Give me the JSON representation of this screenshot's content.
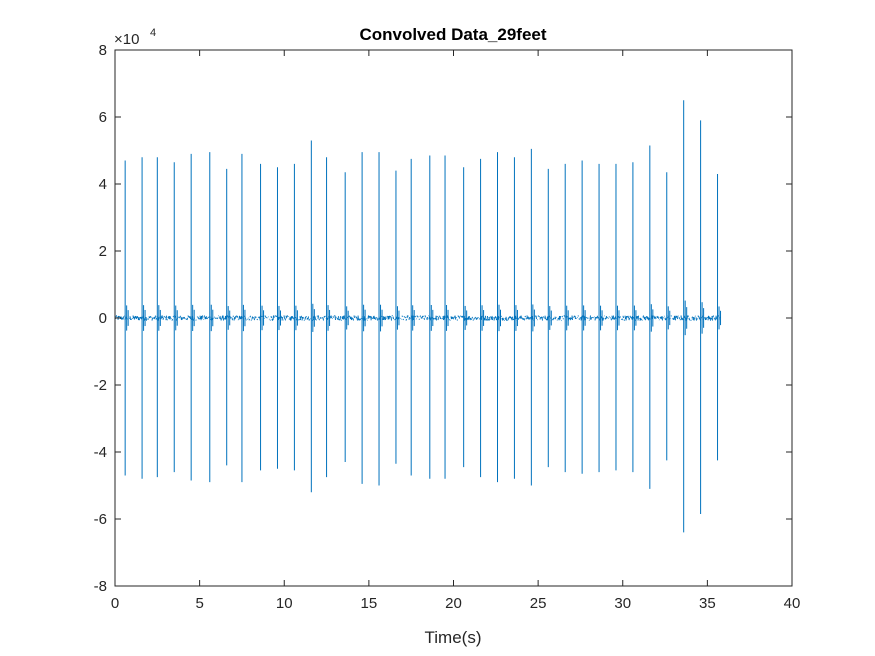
{
  "chart_data": {
    "type": "line",
    "title": "Convolved Data_29feet",
    "xlabel": "Time(s)",
    "ylabel": "",
    "xlim": [
      0,
      40
    ],
    "ylim": [
      -8,
      8
    ],
    "y_exponent_label": "×10",
    "y_exponent_power": "4",
    "x_ticks": [
      0,
      5,
      10,
      15,
      20,
      25,
      30,
      35,
      40
    ],
    "y_ticks": [
      -8,
      -6,
      -4,
      -2,
      0,
      2,
      4,
      6,
      8
    ],
    "x_tick_labels": [
      "0",
      "5",
      "10",
      "15",
      "20",
      "25",
      "30",
      "35",
      "40"
    ],
    "y_tick_labels": [
      "-8",
      "-6",
      "-4",
      "-2",
      "0",
      "2",
      "4",
      "6",
      "8"
    ],
    "grid": false,
    "line_color": "#0072BD",
    "signal_start": 0,
    "signal_end": 35.8,
    "baseline_noise": 0.08,
    "pulses": [
      {
        "t": 0.6,
        "max": 4.7,
        "min": -4.7
      },
      {
        "t": 1.6,
        "max": 4.8,
        "min": -4.8
      },
      {
        "t": 2.5,
        "max": 4.8,
        "min": -4.75
      },
      {
        "t": 3.5,
        "max": 4.65,
        "min": -4.6
      },
      {
        "t": 4.5,
        "max": 4.9,
        "min": -4.85
      },
      {
        "t": 5.6,
        "max": 4.95,
        "min": -4.9
      },
      {
        "t": 6.6,
        "max": 4.45,
        "min": -4.4
      },
      {
        "t": 7.5,
        "max": 4.9,
        "min": -4.9
      },
      {
        "t": 8.6,
        "max": 4.6,
        "min": -4.55
      },
      {
        "t": 9.6,
        "max": 4.5,
        "min": -4.5
      },
      {
        "t": 10.6,
        "max": 4.6,
        "min": -4.55
      },
      {
        "t": 11.6,
        "max": 5.3,
        "min": -5.2
      },
      {
        "t": 12.5,
        "max": 4.8,
        "min": -4.75
      },
      {
        "t": 13.6,
        "max": 4.35,
        "min": -4.3
      },
      {
        "t": 14.6,
        "max": 4.95,
        "min": -4.95
      },
      {
        "t": 15.6,
        "max": 4.95,
        "min": -5.0
      },
      {
        "t": 16.6,
        "max": 4.4,
        "min": -4.35
      },
      {
        "t": 17.5,
        "max": 4.75,
        "min": -4.7
      },
      {
        "t": 18.6,
        "max": 4.85,
        "min": -4.8
      },
      {
        "t": 19.5,
        "max": 4.85,
        "min": -4.8
      },
      {
        "t": 20.6,
        "max": 4.5,
        "min": -4.45
      },
      {
        "t": 21.6,
        "max": 4.75,
        "min": -4.75
      },
      {
        "t": 22.6,
        "max": 4.95,
        "min": -4.9
      },
      {
        "t": 23.6,
        "max": 4.8,
        "min": -4.8
      },
      {
        "t": 24.6,
        "max": 5.05,
        "min": -5.0
      },
      {
        "t": 25.6,
        "max": 4.45,
        "min": -4.45
      },
      {
        "t": 26.6,
        "max": 4.6,
        "min": -4.6
      },
      {
        "t": 27.6,
        "max": 4.7,
        "min": -4.65
      },
      {
        "t": 28.6,
        "max": 4.6,
        "min": -4.6
      },
      {
        "t": 29.6,
        "max": 4.6,
        "min": -4.55
      },
      {
        "t": 30.6,
        "max": 4.65,
        "min": -4.6
      },
      {
        "t": 31.6,
        "max": 5.15,
        "min": -5.1
      },
      {
        "t": 32.6,
        "max": 4.35,
        "min": -4.25
      },
      {
        "t": 33.6,
        "max": 6.5,
        "min": -6.4
      },
      {
        "t": 34.6,
        "max": 5.9,
        "min": -5.85
      },
      {
        "t": 35.6,
        "max": 4.3,
        "min": -4.25
      }
    ]
  }
}
